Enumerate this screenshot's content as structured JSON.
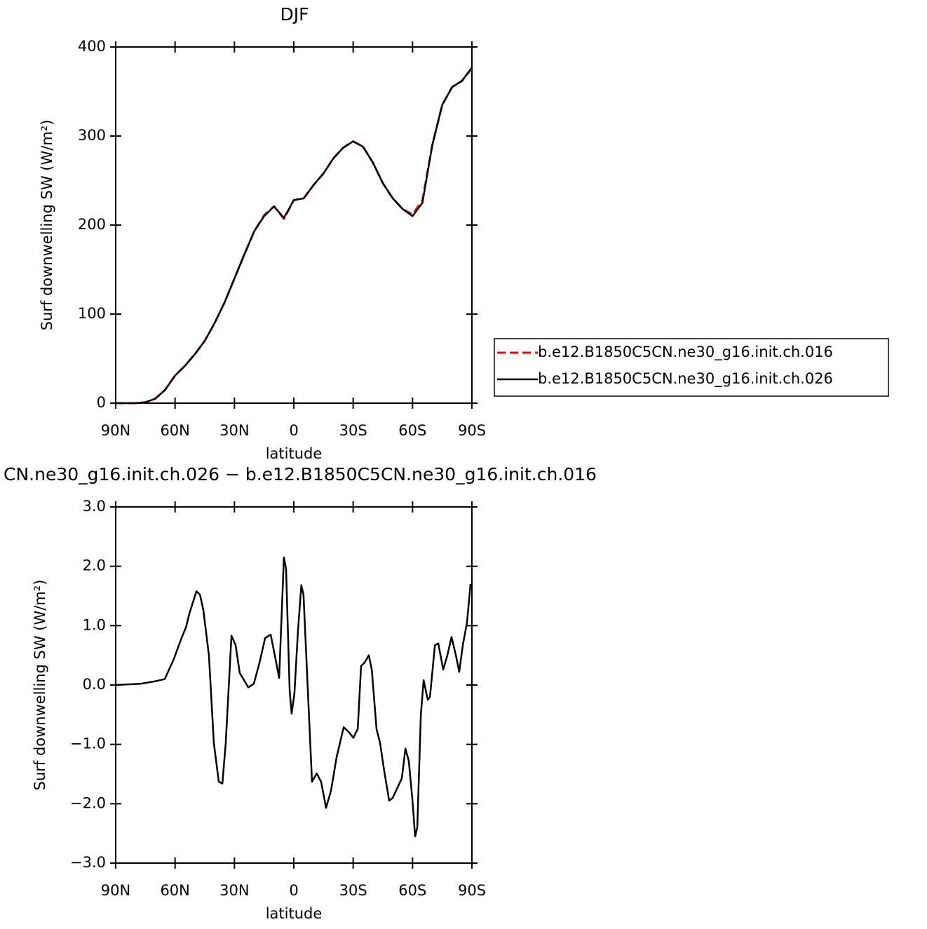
{
  "chart_data": [
    {
      "type": "line",
      "title": "DJF",
      "x_label": "latitude",
      "y_label": "Surf downwelling SW (W/m²)",
      "x": [
        90,
        85,
        80,
        75,
        70,
        65,
        60,
        55,
        50,
        45,
        40,
        35,
        30,
        25,
        20,
        15,
        10,
        5,
        0,
        -5,
        -10,
        -15,
        -20,
        -25,
        -30,
        -35,
        -40,
        -45,
        -50,
        -55,
        -60,
        -65,
        -70,
        -75,
        -80,
        -85,
        -90
      ],
      "series": [
        {
          "name": "b.e12.B1850C5CN.ne30_g16.init.ch.016",
          "color": "#ff0000",
          "line_style": "dashed",
          "values": [
            0,
            0,
            0,
            1,
            5,
            15,
            31,
            42,
            55,
            70,
            90,
            113,
            140,
            167,
            193,
            211,
            221,
            207,
            228,
            230,
            245,
            258,
            275,
            287,
            294,
            288,
            270,
            247,
            230,
            218,
            212,
            228,
            290,
            335,
            355,
            362,
            376
          ]
        },
        {
          "name": "b.e12.B1850C5CN.ne30_g16.init.ch.026",
          "color": "#000000",
          "line_style": "solid",
          "values": [
            0,
            0,
            0,
            1,
            5,
            15,
            31,
            42,
            55,
            70,
            90,
            113,
            140,
            167,
            193,
            210,
            221,
            208,
            228,
            230,
            245,
            258,
            275,
            287,
            294,
            288,
            270,
            247,
            230,
            218,
            210,
            225,
            290,
            335,
            355,
            362,
            377
          ]
        }
      ],
      "legend": "right",
      "xlim": [
        90,
        -90
      ],
      "xticks": [
        {
          "value": 90,
          "label": "90N"
        },
        {
          "value": 60,
          "label": "60N"
        },
        {
          "value": 30,
          "label": "30N"
        },
        0,
        {
          "value": -30,
          "label": "30S"
        },
        {
          "value": -60,
          "label": "60S"
        },
        {
          "value": -90,
          "label": "90S"
        }
      ],
      "ylim": [
        0,
        400
      ],
      "yticks": [
        0,
        100,
        200,
        300,
        400
      ]
    },
    {
      "type": "line",
      "title": "CN.ne30_g16.init.ch.026 − b.e12.B1850C5CN.ne30_g16.init.ch.016",
      "x_label": "latitude",
      "y_label": "Surf downwelling SW (W/m²)",
      "x": [
        90,
        77.6,
        70.5,
        65.2,
        60.6,
        57.0,
        54.5,
        52.8,
        49.2,
        47.4,
        45.7,
        42.9,
        40.4,
        37.9,
        36.1,
        34.4,
        31.5,
        29.4,
        27.3,
        25.1,
        23.0,
        20.2,
        17.3,
        14.5,
        11.7,
        9.6,
        7.4,
        5.0,
        3.9,
        2.1,
        1.1,
        -0.3,
        -2.1,
        -3.8,
        -4.9,
        -6.7,
        -9.2,
        -11.6,
        -13.8,
        -16.3,
        -18.8,
        -21.6,
        -25.2,
        -28.0,
        -30.1,
        -32.3,
        -34.0,
        -35.8,
        -37.9,
        -39.4,
        -41.8,
        -43.6,
        -45.7,
        -48.2,
        -50.0,
        -52.1,
        -54.6,
        -56.4,
        -58.1,
        -59.9,
        -61.3,
        -62.4,
        -64.2,
        -65.6,
        -67.7,
        -68.8,
        -71.3,
        -73.0,
        -75.5,
        -77.6,
        -79.7,
        -81.9,
        -83.6,
        -85.4,
        -87.5,
        -89.3
      ],
      "values": [
        0,
        0.02,
        0.06,
        0.1,
        0.44,
        0.77,
        0.97,
        1.2,
        1.58,
        1.52,
        1.26,
        0.5,
        -0.98,
        -1.63,
        -1.66,
        -0.98,
        0.83,
        0.67,
        0.2,
        0.08,
        -0.04,
        0.02,
        0.38,
        0.79,
        0.85,
        0.5,
        0.12,
        2.15,
        1.95,
        -0.09,
        -0.48,
        -0.15,
        0.91,
        1.68,
        1.52,
        0.2,
        -1.63,
        -1.49,
        -1.63,
        -2.07,
        -1.78,
        -1.22,
        -0.71,
        -0.8,
        -0.89,
        -0.74,
        0.32,
        0.38,
        0.5,
        0.26,
        -0.74,
        -0.98,
        -1.45,
        -1.95,
        -1.9,
        -1.75,
        -1.57,
        -1.07,
        -1.28,
        -1.92,
        -2.55,
        -2.4,
        -0.5,
        0.08,
        -0.25,
        -0.2,
        0.67,
        0.7,
        0.26,
        0.5,
        0.81,
        0.5,
        0.22,
        0.67,
        1.05,
        1.7
      ],
      "color": "#000000",
      "xlim": [
        90,
        -90
      ],
      "xticks": [
        {
          "value": 90,
          "label": "90N"
        },
        {
          "value": 60,
          "label": "60N"
        },
        {
          "value": 30,
          "label": "30N"
        },
        0,
        {
          "value": -30,
          "label": "30S"
        },
        {
          "value": -60,
          "label": "60S"
        },
        {
          "value": -90,
          "label": "90S"
        }
      ],
      "ylim": [
        -3,
        3
      ],
      "yticks": [
        {
          "value": -3,
          "label": "−3.0"
        },
        {
          "value": -2,
          "label": "−2.0"
        },
        {
          "value": -1,
          "label": "−1.0"
        },
        {
          "value": 0,
          "label": "0.0"
        },
        {
          "value": 1,
          "label": "1.0"
        },
        {
          "value": 2,
          "label": "2.0"
        },
        {
          "value": 3,
          "label": "3.0"
        }
      ]
    }
  ]
}
